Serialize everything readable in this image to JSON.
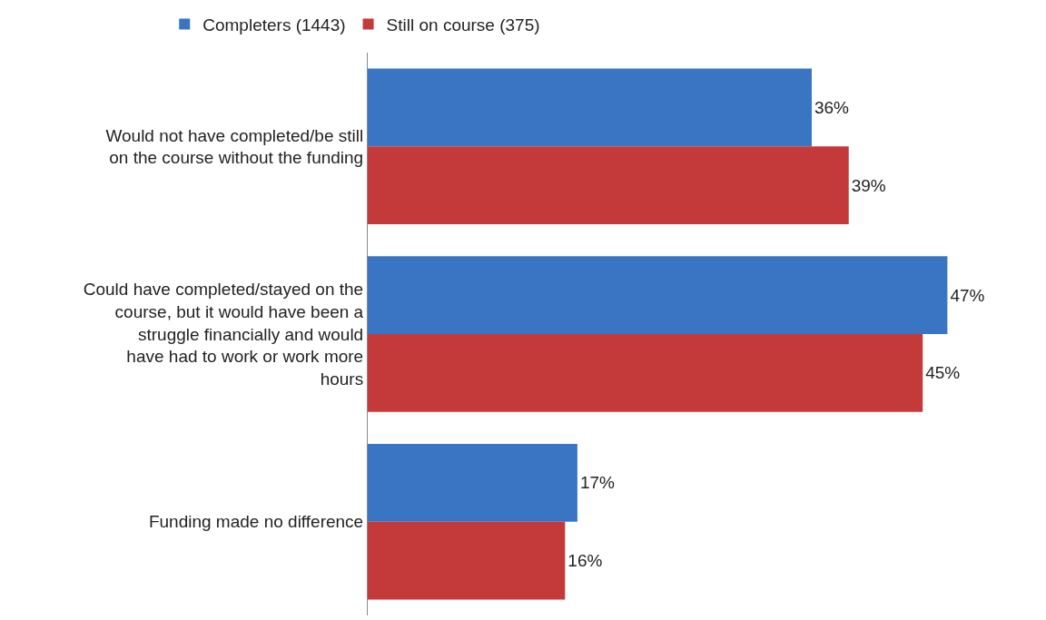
{
  "chart_data": {
    "type": "bar",
    "orientation": "horizontal",
    "categories": [
      "Would not have completed/be still on the course without the funding",
      "Could have completed/stayed on the course, but it would have been a struggle financially and would have had to work or work more hours",
      "Funding made no difference"
    ],
    "series": [
      {
        "name": "Completers (1443)",
        "color": "#3a75c4",
        "values": [
          36,
          47,
          17
        ],
        "value_labels": [
          "36%",
          "47%",
          "17%"
        ]
      },
      {
        "name": "Still on course (375)",
        "color": "#c43a3a",
        "values": [
          39,
          45,
          16
        ],
        "value_labels": [
          "39%",
          "45%",
          "16%"
        ]
      }
    ],
    "legend": "top left",
    "grid": false
  }
}
